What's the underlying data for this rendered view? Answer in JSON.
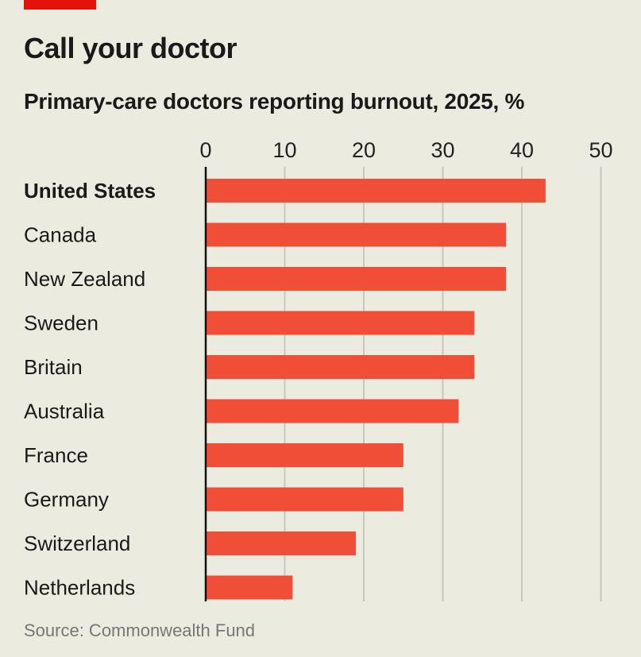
{
  "header": {
    "title": "Call your doctor",
    "subtitle": "Primary-care doctors reporting burnout, 2025, %"
  },
  "footer": {
    "source": "Source: Commonwealth Fund"
  },
  "colors": {
    "bar": "#f04e37",
    "background": "#ecebe0",
    "accent": "#e3120b"
  },
  "chart_data": {
    "type": "bar",
    "orientation": "horizontal",
    "categories": [
      "United States",
      "Canada",
      "New Zealand",
      "Sweden",
      "Britain",
      "Australia",
      "France",
      "Germany",
      "Switzerland",
      "Netherlands"
    ],
    "values": [
      43,
      38,
      38,
      34,
      34,
      32,
      25,
      25,
      19,
      11
    ],
    "highlight": "United States",
    "xlim": [
      0,
      50
    ],
    "xticks": [
      0,
      10,
      20,
      30,
      40,
      50
    ],
    "grid": true
  }
}
